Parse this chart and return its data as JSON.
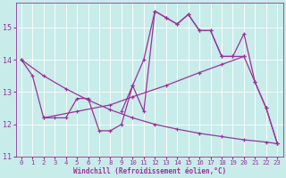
{
  "bg_color": "#c8ecea",
  "line_color": "#993399",
  "xlabel": "Windchill (Refroidissement éolien,°C)",
  "xlim": [
    -0.5,
    23.5
  ],
  "ylim": [
    11.0,
    15.75
  ],
  "yticks": [
    11,
    12,
    13,
    14,
    15
  ],
  "xticks": [
    0,
    1,
    2,
    3,
    4,
    5,
    6,
    7,
    8,
    9,
    10,
    11,
    12,
    13,
    14,
    15,
    16,
    17,
    18,
    19,
    20,
    21,
    22,
    23
  ],
  "lines": [
    {
      "x": [
        0,
        1,
        2,
        3,
        4,
        5,
        6,
        7,
        8,
        9,
        10,
        11,
        12,
        13,
        14,
        15,
        16,
        17,
        18,
        19,
        20,
        21,
        22,
        23
      ],
      "y": [
        14.0,
        13.5,
        12.2,
        12.2,
        12.2,
        12.8,
        12.8,
        11.8,
        11.8,
        12.0,
        13.2,
        12.4,
        15.5,
        15.3,
        15.1,
        15.4,
        14.9,
        14.9,
        14.1,
        14.1,
        14.8,
        13.3,
        12.5,
        11.4
      ]
    },
    {
      "x": [
        0,
        2,
        4,
        6,
        8,
        10,
        12,
        14,
        16,
        18,
        20,
        22,
        23
      ],
      "y": [
        14.0,
        13.5,
        13.1,
        12.75,
        12.45,
        12.2,
        12.0,
        11.85,
        11.72,
        11.62,
        11.52,
        11.45,
        11.4
      ]
    },
    {
      "x": [
        2,
        5,
        8,
        10,
        13,
        16,
        18,
        20
      ],
      "y": [
        12.2,
        12.4,
        12.6,
        12.85,
        13.2,
        13.6,
        13.85,
        14.1
      ]
    },
    {
      "x": [
        9,
        10,
        11,
        12,
        13,
        14,
        15,
        16,
        17,
        18,
        19,
        20,
        21,
        22,
        23
      ],
      "y": [
        12.4,
        13.2,
        14.0,
        15.5,
        15.3,
        15.1,
        15.4,
        14.9,
        14.9,
        14.1,
        14.1,
        14.1,
        13.3,
        12.5,
        11.4
      ]
    }
  ]
}
